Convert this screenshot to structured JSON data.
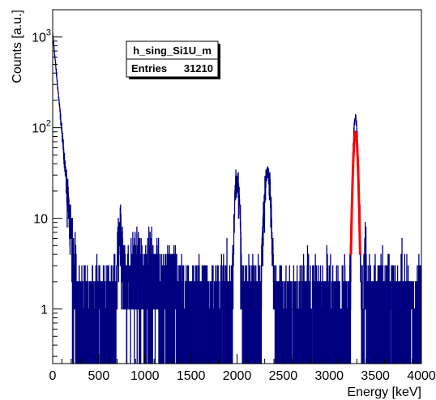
{
  "chart_data": {
    "type": "histogram",
    "xlabel": "Energy [keV]",
    "ylabel": "Counts [a.u.]",
    "xlim": [
      0,
      4000
    ],
    "ylim": [
      0.25,
      2000
    ],
    "yscale": "log",
    "grid": false,
    "x_ticks": [
      0,
      500,
      1000,
      1500,
      2000,
      2500,
      3000,
      3500,
      4000
    ],
    "y_ticks": [
      {
        "value": 1,
        "label": "1"
      },
      {
        "value": 10,
        "label": "10"
      },
      {
        "value": 100,
        "base": "10",
        "exp": "2"
      },
      {
        "value": 1000,
        "base": "10",
        "exp": "3"
      }
    ],
    "stats_box": {
      "title": "h_sing_Si1U_m",
      "entries_label": "Entries",
      "entries_value": "31210"
    },
    "colors": {
      "histogram": "#000080",
      "fit": "#ff0000",
      "frame": "#000000"
    },
    "features": [
      {
        "type": "exponential",
        "x0": 0,
        "amplitude": 1100,
        "decay": 40,
        "until": 260
      },
      {
        "type": "gauss",
        "mu": 735,
        "sigma": 25,
        "amp": 7,
        "until": 1000
      },
      {
        "type": "level",
        "from": 700,
        "to": 1150,
        "level": 2.5
      },
      {
        "type": "level",
        "from": 1150,
        "to": 1350,
        "level": 1.8
      },
      {
        "type": "gauss",
        "mu": 2000,
        "sigma": 22,
        "amp": 28
      },
      {
        "type": "gauss",
        "mu": 2330,
        "sigma": 28,
        "amp": 32
      },
      {
        "type": "gauss",
        "mu": 3285,
        "sigma": 20,
        "amp": 130
      },
      {
        "type": "gauss",
        "mu": 3390,
        "sigma": 8,
        "amp": 6
      },
      {
        "type": "level",
        "from": 0,
        "to": 4000,
        "level": 0.9
      }
    ],
    "fit": {
      "function": "gauss",
      "mu": 3285,
      "sigma": 20,
      "amplitude": 90,
      "x_range": [
        3235,
        3335
      ]
    }
  }
}
